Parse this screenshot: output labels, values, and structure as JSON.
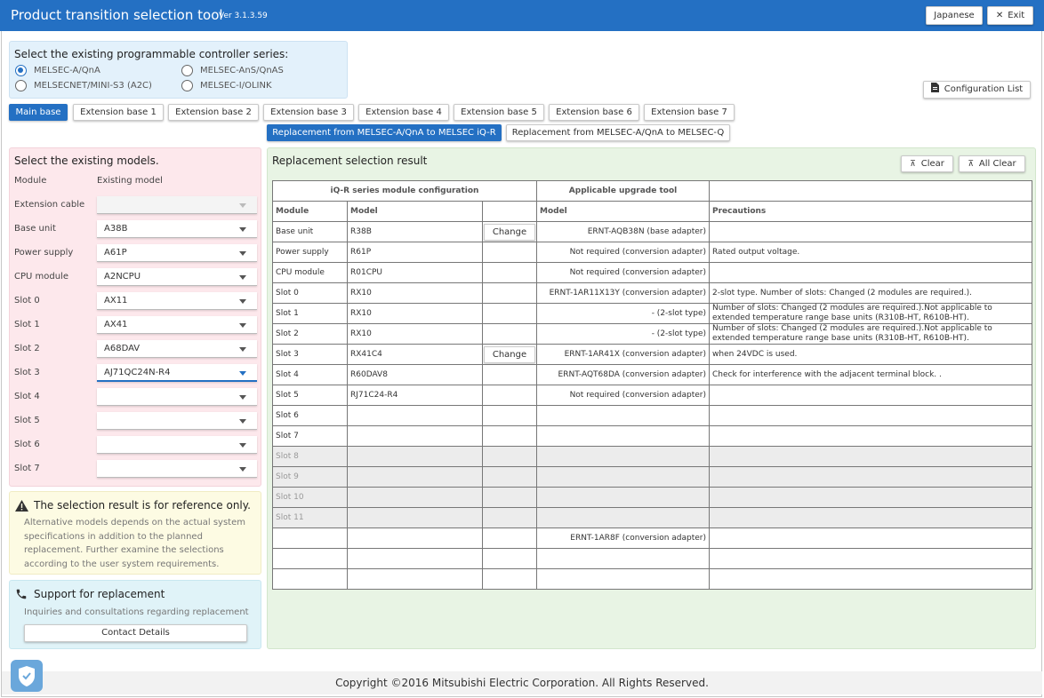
{
  "app": {
    "title": "Product transition selection tool",
    "version": "Ver 3.1.3.59",
    "japanese_label": "Japanese",
    "exit_label": "Exit"
  },
  "series": {
    "prompt": "Select the existing programmable controller series:",
    "options": [
      {
        "label": "MELSEC-A/QnA",
        "selected": true
      },
      {
        "label": "MELSEC-AnS/QnAS",
        "selected": false
      },
      {
        "label": "MELSECNET/MINI-S3 (A2C)",
        "selected": false
      },
      {
        "label": "MELSEC-I/OLINK",
        "selected": false
      }
    ]
  },
  "config_list_label": "Configuration List",
  "base_tabs": [
    {
      "label": "Main base",
      "active": true
    },
    {
      "label": "Extension base 1",
      "active": false
    },
    {
      "label": "Extension base 2",
      "active": false
    },
    {
      "label": "Extension base 3",
      "active": false
    },
    {
      "label": "Extension base 4",
      "active": false
    },
    {
      "label": "Extension base 5",
      "active": false
    },
    {
      "label": "Extension base 6",
      "active": false
    },
    {
      "label": "Extension base 7",
      "active": false
    }
  ],
  "target_tabs": [
    {
      "label": "Replacement from MELSEC-A/QnA to MELSEC iQ-R",
      "active": true
    },
    {
      "label": "Replacement from MELSEC-A/QnA to MELSEC-Q",
      "active": false
    }
  ],
  "models": {
    "prompt": "Select the existing models.",
    "col_module": "Module",
    "col_model": "Existing model",
    "rows": [
      {
        "module": "Extension cable",
        "value": ""
      },
      {
        "module": "Base unit",
        "value": "A38B"
      },
      {
        "module": "Power supply",
        "value": "A61P"
      },
      {
        "module": "CPU module",
        "value": "A2NCPU"
      },
      {
        "module": "Slot 0",
        "value": "AX11"
      },
      {
        "module": "Slot 1",
        "value": "AX41"
      },
      {
        "module": "Slot 2",
        "value": "A68DAV"
      },
      {
        "module": "Slot 3",
        "value": "AJ71QC24N-R4"
      },
      {
        "module": "Slot 4",
        "value": ""
      },
      {
        "module": "Slot 5",
        "value": ""
      },
      {
        "module": "Slot 6",
        "value": ""
      },
      {
        "module": "Slot 7",
        "value": ""
      }
    ]
  },
  "warning": {
    "title": "The selection result is for reference only.",
    "body": "Alternative models depends on the actual system specifications in addition to the planned replacement. Further examine the selections according to the user system requirements."
  },
  "support": {
    "title": "Support for replacement",
    "subtitle": "Inquiries and consultations regarding replacement",
    "contact_label": "Contact Details"
  },
  "result": {
    "title": "Replacement selection result",
    "clear_label": "Clear",
    "all_clear_label": "All Clear",
    "group_iqr": "iQ-R series module configuration",
    "group_tool": "Applicable upgrade tool",
    "col_module": "Module",
    "col_model": "Model",
    "col_tool_model": "Model",
    "col_precautions": "Precautions",
    "change_label": "Change",
    "rows": [
      {
        "module": "Base unit",
        "model": "R38B",
        "change": true,
        "tool": "ERNT-AQB38N (base adapter)",
        "precautions": "",
        "disabled": false
      },
      {
        "module": "Power supply",
        "model": "R61P",
        "change": false,
        "tool": "Not required (conversion adapter)",
        "precautions": "Rated output voltage.",
        "disabled": false
      },
      {
        "module": "CPU module",
        "model": "R01CPU",
        "change": false,
        "tool": "Not required (conversion adapter)",
        "precautions": "",
        "disabled": false
      },
      {
        "module": "Slot 0",
        "model": "RX10",
        "change": false,
        "tool": "ERNT-1AR11X13Y (conversion adapter)",
        "precautions": "2-slot type. Number of slots: Changed (2 modules are required.).",
        "disabled": false
      },
      {
        "module": "Slot 1",
        "model": "RX10",
        "change": false,
        "tool": "- (2-slot type)",
        "precautions": "Number of slots: Changed (2 modules are required.).Not applicable to extended temperature range base units (R310B-HT, R610B-HT).",
        "disabled": false
      },
      {
        "module": "Slot 2",
        "model": "RX10",
        "change": false,
        "tool": "- (2-slot type)",
        "precautions": "Number of slots: Changed (2 modules are required.).Not applicable to extended temperature range base units (R310B-HT, R610B-HT).",
        "disabled": false
      },
      {
        "module": "Slot 3",
        "model": "RX41C4",
        "change": true,
        "tool": "ERNT-1AR41X (conversion adapter)",
        "precautions": "when 24VDC is used.",
        "disabled": false
      },
      {
        "module": "Slot 4",
        "model": "R60DAV8",
        "change": false,
        "tool": "ERNT-AQT68DA (conversion adapter)",
        "precautions": "Check for interference with the adjacent terminal block. .",
        "disabled": false
      },
      {
        "module": "Slot 5",
        "model": "RJ71C24-R4",
        "change": false,
        "tool": "Not required (conversion adapter)",
        "precautions": "",
        "disabled": false
      },
      {
        "module": "Slot 6",
        "model": "",
        "change": false,
        "tool": "",
        "precautions": "",
        "disabled": false
      },
      {
        "module": "Slot 7",
        "model": "",
        "change": false,
        "tool": "",
        "precautions": "",
        "disabled": false
      },
      {
        "module": "Slot 8",
        "model": "",
        "change": false,
        "tool": "",
        "precautions": "",
        "disabled": true
      },
      {
        "module": "Slot 9",
        "model": "",
        "change": false,
        "tool": "",
        "precautions": "",
        "disabled": true
      },
      {
        "module": "Slot 10",
        "model": "",
        "change": false,
        "tool": "",
        "precautions": "",
        "disabled": true
      },
      {
        "module": "Slot 11",
        "model": "",
        "change": false,
        "tool": "",
        "precautions": "",
        "disabled": true
      },
      {
        "module": "",
        "model": "",
        "change": false,
        "tool": "ERNT-1AR8F (conversion adapter)",
        "precautions": "",
        "disabled": false
      },
      {
        "module": "",
        "model": "",
        "change": false,
        "tool": "",
        "precautions": "",
        "disabled": false
      },
      {
        "module": "",
        "model": "",
        "change": false,
        "tool": "",
        "precautions": "",
        "disabled": false
      }
    ]
  },
  "footer": {
    "copyright": "Copyright ©2016 Mitsubishi Electric Corporation. All Rights Reserved."
  }
}
